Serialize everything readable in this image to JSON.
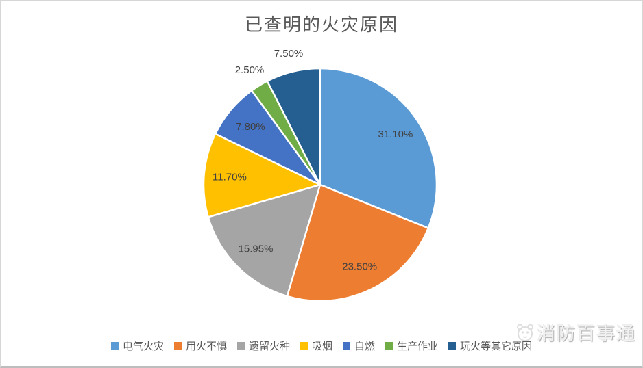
{
  "chart_data": {
    "type": "pie",
    "title": "已查明的火灾原因",
    "start_angle_deg": 0,
    "direction": "clockwise",
    "legend_position": "bottom",
    "slices": [
      {
        "label": "电气火灾",
        "value": 31.1,
        "display": "31.10%",
        "color": "#5B9BD5",
        "label_inside": true
      },
      {
        "label": "用火不慎",
        "value": 23.5,
        "display": "23.50%",
        "color": "#ED7D31",
        "label_inside": true
      },
      {
        "label": "遗留火种",
        "value": 15.95,
        "display": "15.95%",
        "color": "#A5A5A5",
        "label_inside": true
      },
      {
        "label": "吸烟",
        "value": 11.7,
        "display": "11.70%",
        "color": "#FFC000",
        "label_inside": true
      },
      {
        "label": "自燃",
        "value": 7.8,
        "display": "7.80%",
        "color": "#4472C4",
        "label_inside": true
      },
      {
        "label": "生产作业",
        "value": 2.5,
        "display": "2.50%",
        "color": "#70AD47",
        "label_inside": false
      },
      {
        "label": "玩火等其它原因",
        "value": 7.5,
        "display": "7.50%",
        "color": "#255E91",
        "label_inside": false
      }
    ],
    "label_color": "#404040",
    "slice_gap_color": "#ffffff"
  },
  "watermark": {
    "text": "消防百事通"
  }
}
